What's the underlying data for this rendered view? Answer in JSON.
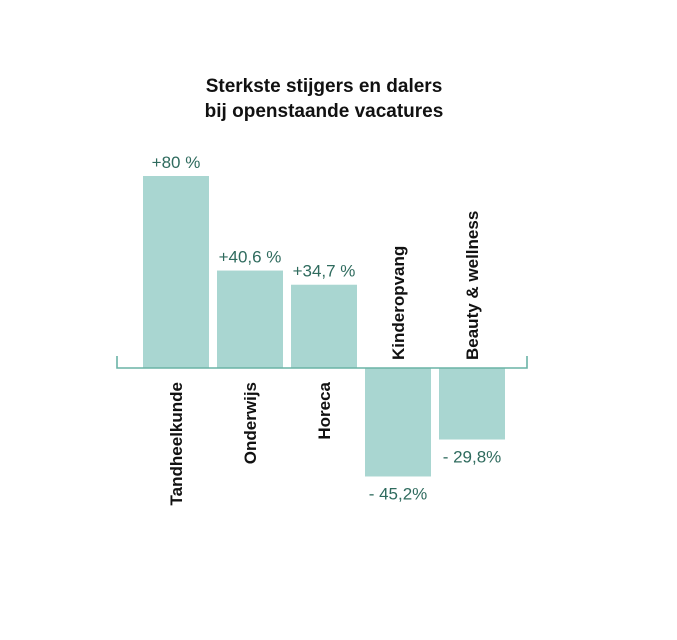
{
  "chart_data": {
    "type": "bar",
    "title": "Sterkste stijgers en dalers",
    "subtitle": "bij openstaande vacatures",
    "categories": [
      "Tandheelkunde",
      "Onderwijs",
      "Horeca",
      "Kinderopvang",
      "Beauty & wellness"
    ],
    "values": [
      80,
      40.6,
      34.7,
      -45.2,
      -29.8
    ],
    "value_labels": [
      "+80 %",
      "+40,6 %",
      "+34,7 %",
      "- 45,2%",
      "- 29,8%"
    ],
    "ylim": [
      -50,
      85
    ],
    "grid": false,
    "colors": {
      "bar": "#a9d6d1",
      "axis": "#6ab3a6",
      "value_text": "#2f6b5e",
      "label_text": "#111111"
    }
  }
}
